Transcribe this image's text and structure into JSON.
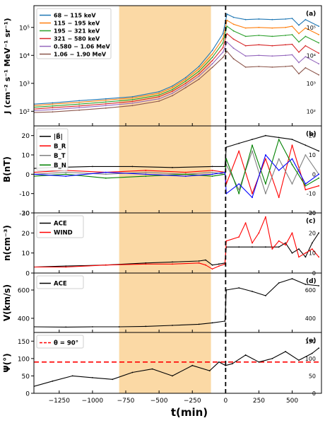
{
  "figure": {
    "xlabel": "t(min)",
    "x_ticks": [
      -1250,
      -1000,
      -750,
      -500,
      -250,
      0,
      250,
      500
    ],
    "xlim": [
      -1440,
      720
    ],
    "shaded_interval": [
      -800,
      -110
    ],
    "shade_color": "#fbd9a5",
    "event_line_x": 0
  },
  "chart_data": [
    {
      "type": "line",
      "panel_label": "(a)",
      "ylabel": "J (cm⁻² s⁻¹ MeV⁻¹ sr⁻¹)",
      "yscale": "log",
      "ylim": [
        30,
        600000
      ],
      "y_ticks": [
        {
          "value": 100,
          "label": "10²"
        },
        {
          "value": 1000,
          "label": "10³"
        },
        {
          "value": 10000,
          "label": "10⁴"
        },
        {
          "value": 100000,
          "label": "10⁵"
        }
      ],
      "legend_position": "top-left",
      "series": [
        {
          "name": "68 − 115 keV",
          "color": "#1f77b4",
          "x": [
            -1440,
            -1300,
            -1100,
            -900,
            -700,
            -500,
            -400,
            -300,
            -200,
            -100,
            -20,
            10,
            60,
            150,
            250,
            350,
            450,
            500,
            550,
            600,
            700
          ],
          "values": [
            180,
            200,
            240,
            280,
            330,
            500,
            800,
            1600,
            4000,
            15000,
            60000,
            300000,
            230000,
            190000,
            200000,
            190000,
            200000,
            210000,
            120000,
            190000,
            110000
          ]
        },
        {
          "name": "115 − 195 keV",
          "color": "#ff7f0e",
          "x": [
            -1440,
            -1300,
            -1100,
            -900,
            -700,
            -500,
            -400,
            -300,
            -200,
            -100,
            -20,
            10,
            60,
            150,
            250,
            350,
            450,
            500,
            550,
            600,
            700
          ],
          "values": [
            160,
            180,
            210,
            250,
            300,
            440,
            700,
            1400,
            3300,
            11000,
            40000,
            180000,
            130000,
            95000,
            100000,
            95000,
            100000,
            110000,
            60000,
            95000,
            55000
          ]
        },
        {
          "name": "195 − 321 keV",
          "color": "#2ca02c",
          "x": [
            -1440,
            -1300,
            -1100,
            -900,
            -700,
            -500,
            -400,
            -300,
            -200,
            -100,
            -20,
            10,
            60,
            150,
            250,
            350,
            450,
            500,
            550,
            600,
            700
          ],
          "values": [
            140,
            155,
            180,
            215,
            260,
            380,
            600,
            1200,
            2700,
            8500,
            28000,
            110000,
            75000,
            48000,
            52000,
            48000,
            52000,
            55000,
            30000,
            48000,
            28000
          ]
        },
        {
          "name": "321 − 580 keV",
          "color": "#d62728",
          "x": [
            -1440,
            -1300,
            -1100,
            -900,
            -700,
            -500,
            -400,
            -300,
            -200,
            -100,
            -20,
            10,
            60,
            150,
            250,
            350,
            450,
            500,
            550,
            600,
            700
          ],
          "values": [
            120,
            135,
            155,
            185,
            225,
            330,
            520,
            1000,
            2200,
            6500,
            19000,
            60000,
            38000,
            22000,
            24000,
            22000,
            24000,
            25000,
            13000,
            22000,
            12000
          ]
        },
        {
          "name": "0.580 − 1.06 MeV",
          "color": "#9467bd",
          "x": [
            -1440,
            -1300,
            -1100,
            -900,
            -700,
            -500,
            -400,
            -300,
            -200,
            -100,
            -20,
            10,
            60,
            150,
            250,
            350,
            450,
            500,
            550,
            600,
            700
          ],
          "values": [
            105,
            115,
            135,
            160,
            195,
            280,
            440,
            850,
            1800,
            5000,
            13000,
            30000,
            18000,
            9500,
            10000,
            9500,
            10000,
            10500,
            5500,
            9000,
            5000
          ]
        },
        {
          "name": "1.06 − 1.90 MeV",
          "color": "#8c564b",
          "x": [
            -1440,
            -1300,
            -1100,
            -900,
            -700,
            -500,
            -400,
            -300,
            -200,
            -100,
            -20,
            10,
            60,
            150,
            250,
            350,
            450,
            500,
            550,
            600,
            700
          ],
          "values": [
            90,
            95,
            110,
            130,
            160,
            230,
            360,
            700,
            1400,
            3700,
            8500,
            14000,
            7500,
            3800,
            4000,
            3800,
            4000,
            4200,
            2200,
            3600,
            2000
          ]
        }
      ]
    },
    {
      "type": "line",
      "panel_label": "(b)",
      "ylabel": "B(nT)",
      "ylim": [
        -20,
        25
      ],
      "y_ticks": [
        -20,
        -10,
        0,
        10,
        20
      ],
      "legend_position": "top-left",
      "series": [
        {
          "name": "|B⃗|",
          "color": "#000000",
          "x": [
            -1440,
            -1300,
            -1000,
            -700,
            -400,
            -100,
            -5,
            5,
            100,
            200,
            300,
            400,
            500,
            600,
            700
          ],
          "values": [
            3,
            3.5,
            4,
            4,
            3.5,
            4,
            4,
            14,
            16,
            18,
            20,
            19,
            18,
            15,
            12
          ]
        },
        {
          "name": "B_R",
          "color": "#ff0000",
          "x": [
            -1440,
            -1200,
            -900,
            -600,
            -300,
            -100,
            -5,
            5,
            100,
            200,
            300,
            400,
            500,
            600,
            700
          ],
          "values": [
            1,
            2,
            1,
            2,
            1,
            2,
            1,
            -5,
            12,
            -10,
            8,
            -12,
            15,
            -8,
            -6
          ]
        },
        {
          "name": "B_T",
          "color": "#808080",
          "x": [
            -1440,
            -1200,
            -900,
            -600,
            -300,
            -100,
            -5,
            5,
            100,
            200,
            300,
            400,
            500,
            600,
            700
          ],
          "values": [
            0,
            1,
            0,
            1,
            0,
            1,
            0,
            5,
            -8,
            12,
            -10,
            8,
            -5,
            10,
            0
          ]
        },
        {
          "name": "B_N",
          "color": "#008000",
          "x": [
            -1440,
            -1200,
            -900,
            -600,
            -300,
            -100,
            -5,
            5,
            100,
            200,
            300,
            400,
            500,
            600,
            700
          ],
          "values": [
            -1,
            0,
            -2,
            -1,
            0,
            -1,
            0,
            8,
            -10,
            15,
            -5,
            18,
            5,
            -6,
            -2
          ]
        },
        {
          "name": "",
          "color": "#0000ff",
          "x": [
            -1440,
            -1200,
            -900,
            -600,
            -300,
            -100,
            -5,
            5,
            100,
            200,
            300,
            400,
            500,
            600,
            700
          ],
          "values": [
            0,
            -1,
            1,
            0,
            -1,
            0,
            1,
            -10,
            -5,
            -12,
            10,
            2,
            8,
            -5,
            0
          ]
        }
      ]
    },
    {
      "type": "line",
      "panel_label": "(c)",
      "ylabel": "n(cm⁻³)",
      "ylim": [
        0,
        30
      ],
      "y_ticks": [
        0,
        10,
        20,
        30
      ],
      "legend_position": "top-left",
      "series": [
        {
          "name": "ACE",
          "color": "#000000",
          "x": [
            -1440,
            -1200,
            -900,
            -600,
            -400,
            -200,
            -150,
            -100,
            -50,
            -5,
            5,
            100,
            200,
            300,
            400,
            450,
            500,
            550,
            600,
            650,
            700
          ],
          "values": [
            3,
            3.5,
            4,
            5,
            5.5,
            6,
            6.5,
            4,
            4.5,
            5,
            13,
            13,
            13,
            13,
            13,
            15,
            10,
            12,
            8,
            15,
            20
          ]
        },
        {
          "name": "WIND",
          "color": "#ff0000",
          "x": [
            -1440,
            -1200,
            -900,
            -600,
            -400,
            -200,
            -150,
            -100,
            -50,
            -5,
            5,
            100,
            150,
            200,
            250,
            300,
            350,
            400,
            450,
            500,
            550,
            600,
            650,
            700
          ],
          "values": [
            3,
            3,
            4,
            4.5,
            4.5,
            5,
            4,
            2,
            3.5,
            4.5,
            16,
            18,
            25,
            15,
            20,
            28,
            12,
            16,
            14,
            20,
            8,
            10,
            12,
            8
          ]
        }
      ]
    },
    {
      "type": "line",
      "panel_label": "(d)",
      "ylabel": "V(km/s)",
      "ylim": [
        300,
        720
      ],
      "y_ticks": [
        400,
        600
      ],
      "legend_position": "top-left",
      "series": [
        {
          "name": "ACE",
          "color": "#000000",
          "x": [
            -1440,
            -1200,
            -1000,
            -800,
            -600,
            -400,
            -200,
            -100,
            -5,
            5,
            100,
            200,
            300,
            400,
            500,
            600,
            700
          ],
          "values": [
            340,
            338,
            340,
            340,
            343,
            350,
            358,
            368,
            380,
            600,
            615,
            590,
            560,
            650,
            680,
            640,
            630
          ]
        }
      ]
    },
    {
      "type": "line",
      "panel_label": "(e)",
      "ylabel": "Ψ(°)",
      "ylim": [
        0,
        175
      ],
      "y_ticks": [
        0,
        50,
        100,
        150
      ],
      "legend_position": "top-left",
      "reference_line": {
        "name": "θ = 90°",
        "value": 90,
        "color": "#ff0000"
      },
      "series": [
        {
          "name": "",
          "color": "#000000",
          "x": [
            -1440,
            -1300,
            -1150,
            -1000,
            -850,
            -700,
            -550,
            -400,
            -250,
            -120,
            -50,
            0,
            50,
            150,
            250,
            350,
            450,
            550,
            650,
            700
          ],
          "values": [
            20,
            35,
            50,
            45,
            40,
            60,
            70,
            50,
            80,
            65,
            90,
            80,
            85,
            110,
            90,
            100,
            120,
            95,
            115,
            130
          ]
        }
      ]
    }
  ]
}
